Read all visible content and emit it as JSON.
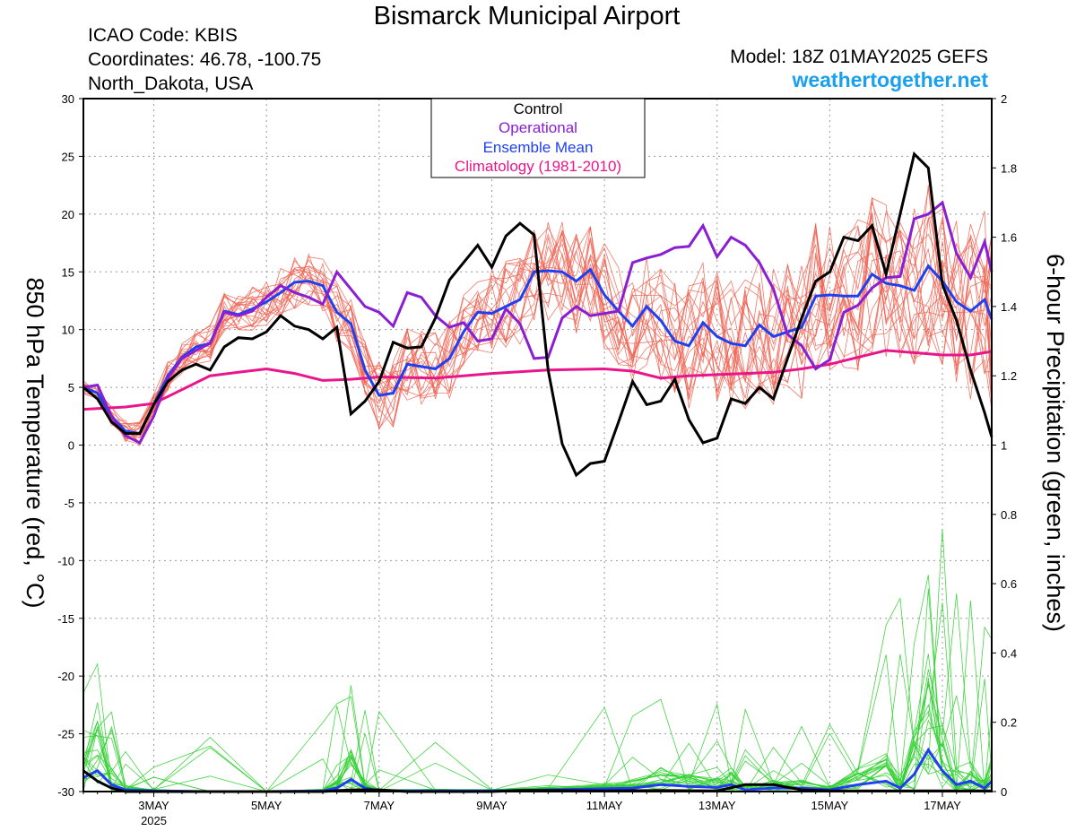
{
  "header": {
    "title": "Bismarck Municipal Airport",
    "icao": "ICAO Code: KBIS",
    "coordinates": "Coordinates: 46.78, -100.75",
    "region": "North_Dakota, USA",
    "model": "Model: 18Z 01MAY2025 GEFS",
    "website": "weathertogether.net"
  },
  "chart_data": {
    "type": "line",
    "title": "Bismarck Municipal Airport",
    "ylabel_left": "850 hPa Temperature (red, °C)",
    "ylabel_right": "6-hour Precipitation (green, inches)",
    "xlim_day": [
      1.75,
      17.875
    ],
    "ylim_left": [
      -30,
      30
    ],
    "ylim_right": [
      0,
      2
    ],
    "x_ticks": [
      {
        "day": 3,
        "label": "3MAY",
        "sublabel": "2025"
      },
      {
        "day": 5,
        "label": "5MAY"
      },
      {
        "day": 7,
        "label": "7MAY"
      },
      {
        "day": 9,
        "label": "9MAY"
      },
      {
        "day": 11,
        "label": "11MAY"
      },
      {
        "day": 13,
        "label": "13MAY"
      },
      {
        "day": 15,
        "label": "15MAY"
      },
      {
        "day": 17,
        "label": "17MAY"
      }
    ],
    "yticks_left": [
      "30",
      "25",
      "20",
      "15",
      "10",
      "5",
      "0",
      "-5",
      "-10",
      "-15",
      "-20",
      "-25",
      "-30"
    ],
    "yticks_right": [
      "2",
      "1.8",
      "1.6",
      "1.4",
      "1.2",
      "1",
      "0.8",
      "0.6",
      "0.4",
      "0.2",
      "0"
    ],
    "grid": true,
    "legend": {
      "placement": "top-center",
      "entries": [
        {
          "label": "Control",
          "color": "#000000"
        },
        {
          "label": "Operational",
          "color": "#8a1ed2"
        },
        {
          "label": "Ensemble Mean",
          "color": "#2040f0"
        },
        {
          "label": "Climatology (1981-2010)",
          "color": "#e8168a"
        }
      ]
    },
    "colors": {
      "control": "#000000",
      "operational": "#8a1ed2",
      "ensemble_mean": "#2040f0",
      "climatology": "#e8168a",
      "members_temp": "#f06050",
      "members_precip": "#30d030"
    },
    "series": {
      "control_temp": [
        [
          1.75,
          5
        ],
        [
          2,
          4
        ],
        [
          2.25,
          2
        ],
        [
          2.5,
          1
        ],
        [
          2.75,
          1
        ],
        [
          3,
          3.5
        ],
        [
          3.25,
          5.5
        ],
        [
          3.5,
          6.5
        ],
        [
          3.75,
          7
        ],
        [
          4,
          6.5
        ],
        [
          4.25,
          8.5
        ],
        [
          4.5,
          9.3
        ],
        [
          4.75,
          9.2
        ],
        [
          5,
          9.8
        ],
        [
          5.25,
          11.2
        ],
        [
          5.5,
          10.3
        ],
        [
          5.75,
          10
        ],
        [
          6,
          9.2
        ],
        [
          6.25,
          10.2
        ],
        [
          6.5,
          2.7
        ],
        [
          6.75,
          3.8
        ],
        [
          7,
          5.5
        ],
        [
          7.25,
          8.9
        ],
        [
          7.5,
          8.4
        ],
        [
          7.75,
          8.5
        ],
        [
          8,
          11
        ],
        [
          8.25,
          14.3
        ],
        [
          8.5,
          15.8
        ],
        [
          8.75,
          17.3
        ],
        [
          9,
          15.4
        ],
        [
          9.25,
          18.1
        ],
        [
          9.5,
          19.2
        ],
        [
          9.75,
          18.2
        ],
        [
          10,
          6.5
        ],
        [
          10.25,
          0.1
        ],
        [
          10.5,
          -2.6
        ],
        [
          10.75,
          -1.6
        ],
        [
          11,
          -1.4
        ],
        [
          11.25,
          2
        ],
        [
          11.5,
          5.5
        ],
        [
          11.75,
          3.5
        ],
        [
          12,
          3.8
        ],
        [
          12.25,
          5.7
        ],
        [
          12.5,
          2.2
        ],
        [
          12.75,
          0.2
        ],
        [
          13,
          0.6
        ],
        [
          13.25,
          4
        ],
        [
          13.5,
          3.6
        ],
        [
          13.75,
          5
        ],
        [
          14,
          4
        ],
        [
          14.25,
          7.5
        ],
        [
          14.5,
          11
        ],
        [
          14.75,
          14.2
        ],
        [
          15,
          15
        ],
        [
          15.25,
          18
        ],
        [
          15.5,
          17.7
        ],
        [
          15.75,
          19
        ],
        [
          16,
          14.8
        ],
        [
          16.25,
          20
        ],
        [
          16.5,
          25.2
        ],
        [
          16.75,
          24
        ],
        [
          17,
          13.9
        ],
        [
          17.25,
          10.8
        ],
        [
          17.5,
          6.5
        ],
        [
          17.75,
          2.8
        ],
        [
          17.875,
          0.7
        ]
      ],
      "operational_temp": [
        [
          1.75,
          5
        ],
        [
          2,
          5.2
        ],
        [
          2.25,
          2.5
        ],
        [
          2.5,
          0.8
        ],
        [
          2.75,
          0.2
        ],
        [
          3,
          2.5
        ],
        [
          3.25,
          5.8
        ],
        [
          3.5,
          7.5
        ],
        [
          3.75,
          8.2
        ],
        [
          4,
          8.8
        ],
        [
          4.25,
          11.5
        ],
        [
          4.5,
          11.2
        ],
        [
          4.75,
          11.6
        ],
        [
          5,
          12.8
        ],
        [
          5.25,
          13.8
        ],
        [
          5.5,
          13.2
        ],
        [
          5.75,
          12.8
        ],
        [
          6,
          12.2
        ],
        [
          6.25,
          15
        ],
        [
          6.5,
          13.5
        ],
        [
          6.75,
          12
        ],
        [
          7,
          11.5
        ],
        [
          7.25,
          10.3
        ],
        [
          7.5,
          13.2
        ],
        [
          7.75,
          12.8
        ],
        [
          8,
          11.2
        ],
        [
          8.25,
          10.2
        ],
        [
          8.5,
          10.6
        ],
        [
          8.75,
          9
        ],
        [
          9,
          9.2
        ],
        [
          9.25,
          11.8
        ],
        [
          9.5,
          10.5
        ],
        [
          9.75,
          7.5
        ],
        [
          10,
          7.6
        ],
        [
          10.25,
          11
        ],
        [
          10.5,
          12
        ],
        [
          10.75,
          11.2
        ],
        [
          11,
          11.4
        ],
        [
          11.25,
          11.6
        ],
        [
          11.5,
          15.8
        ],
        [
          11.75,
          16.2
        ],
        [
          12,
          16.5
        ],
        [
          12.25,
          17.1
        ],
        [
          12.5,
          17.2
        ],
        [
          12.75,
          19
        ],
        [
          13,
          16.3
        ],
        [
          13.25,
          18
        ],
        [
          13.5,
          17.3
        ],
        [
          13.75,
          15.8
        ],
        [
          14,
          13.5
        ],
        [
          14.25,
          9.6
        ],
        [
          14.5,
          8.6
        ],
        [
          14.75,
          6.6
        ],
        [
          15,
          7.4
        ],
        [
          15.25,
          11.5
        ],
        [
          15.5,
          12.1
        ],
        [
          15.75,
          13.6
        ],
        [
          16,
          14.5
        ],
        [
          16.25,
          14.6
        ],
        [
          16.5,
          19.6
        ],
        [
          16.75,
          20
        ],
        [
          17,
          21
        ],
        [
          17.25,
          16.6
        ],
        [
          17.5,
          14.5
        ],
        [
          17.75,
          17.6
        ],
        [
          17.875,
          15
        ]
      ],
      "ensemble_mean_temp": [
        [
          1.75,
          5
        ],
        [
          2,
          4.5
        ],
        [
          2.25,
          2.5
        ],
        [
          2.5,
          1.2
        ],
        [
          2.75,
          1
        ],
        [
          3,
          3.5
        ],
        [
          3.25,
          6
        ],
        [
          3.5,
          7.6
        ],
        [
          3.75,
          8.5
        ],
        [
          4,
          8.8
        ],
        [
          4.25,
          11.6
        ],
        [
          4.5,
          11.3
        ],
        [
          4.75,
          11.8
        ],
        [
          5,
          12.4
        ],
        [
          5.25,
          13.2
        ],
        [
          5.5,
          14.1
        ],
        [
          5.75,
          14.2
        ],
        [
          6,
          13.8
        ],
        [
          6.25,
          11.5
        ],
        [
          6.5,
          10.5
        ],
        [
          6.75,
          6.5
        ],
        [
          7,
          4.3
        ],
        [
          7.25,
          4.5
        ],
        [
          7.5,
          7
        ],
        [
          7.75,
          6.8
        ],
        [
          8,
          6.6
        ],
        [
          8.25,
          7.5
        ],
        [
          8.5,
          9.8
        ],
        [
          8.75,
          11.5
        ],
        [
          9,
          11.4
        ],
        [
          9.25,
          12
        ],
        [
          9.5,
          12.6
        ],
        [
          9.75,
          15
        ],
        [
          10,
          15.1
        ],
        [
          10.25,
          15
        ],
        [
          10.5,
          14.2
        ],
        [
          10.75,
          15.2
        ],
        [
          11,
          13
        ],
        [
          11.25,
          11.6
        ],
        [
          11.5,
          10.3
        ],
        [
          11.75,
          12
        ],
        [
          12,
          10.8
        ],
        [
          12.25,
          9
        ],
        [
          12.5,
          8.6
        ],
        [
          12.75,
          10.6
        ],
        [
          13,
          9.4
        ],
        [
          13.25,
          8.8
        ],
        [
          13.5,
          8.6
        ],
        [
          13.75,
          10.4
        ],
        [
          14,
          9.4
        ],
        [
          14.25,
          9.8
        ],
        [
          14.5,
          10.2
        ],
        [
          14.75,
          12.9
        ],
        [
          15,
          13
        ],
        [
          15.25,
          12.9
        ],
        [
          15.5,
          12.9
        ],
        [
          15.75,
          14.8
        ],
        [
          16,
          14
        ],
        [
          16.25,
          13.8
        ],
        [
          16.5,
          13.4
        ],
        [
          16.75,
          15.5
        ],
        [
          17,
          14.2
        ],
        [
          17.25,
          12.4
        ],
        [
          17.5,
          11.6
        ],
        [
          17.75,
          12.6
        ],
        [
          17.875,
          10.9
        ]
      ],
      "climatology_temp": [
        [
          1.75,
          3.1
        ],
        [
          2.5,
          3.3
        ],
        [
          3,
          3.6
        ],
        [
          3.5,
          4.8
        ],
        [
          4,
          6
        ],
        [
          4.5,
          6.3
        ],
        [
          5,
          6.6
        ],
        [
          5.5,
          6.2
        ],
        [
          6,
          5.6
        ],
        [
          6.5,
          5.7
        ],
        [
          7,
          5.9
        ],
        [
          8,
          5.8
        ],
        [
          8.5,
          6
        ],
        [
          9,
          6.2
        ],
        [
          10,
          6.5
        ],
        [
          11,
          6.6
        ],
        [
          11.5,
          6.4
        ],
        [
          12,
          5.8
        ],
        [
          12.5,
          6
        ],
        [
          13,
          6.1
        ],
        [
          13.5,
          6.2
        ],
        [
          14,
          6.3
        ],
        [
          14.5,
          6.6
        ],
        [
          15,
          7
        ],
        [
          15.5,
          7.6
        ],
        [
          16,
          8.2
        ],
        [
          16.5,
          8
        ],
        [
          17,
          7.8
        ],
        [
          17.5,
          7.8
        ],
        [
          17.875,
          8.1
        ]
      ],
      "control_precip": [
        [
          1.75,
          0.06
        ],
        [
          2,
          0.03
        ],
        [
          2.25,
          0.01
        ],
        [
          2.5,
          0
        ],
        [
          3,
          0
        ],
        [
          4,
          0
        ],
        [
          5,
          0
        ],
        [
          6,
          0
        ],
        [
          6.5,
          0.005
        ],
        [
          7,
          0.005
        ],
        [
          7.5,
          0
        ],
        [
          8,
          0
        ],
        [
          9,
          0
        ],
        [
          9.5,
          0.003
        ],
        [
          10,
          0.003
        ],
        [
          11,
          0.002
        ],
        [
          12,
          0.003
        ],
        [
          13,
          0.002
        ],
        [
          13.5,
          0.02
        ],
        [
          14,
          0.02
        ],
        [
          14.5,
          0.005
        ],
        [
          15,
          0.002
        ],
        [
          16,
          0.002
        ],
        [
          17,
          0.002
        ],
        [
          17.875,
          0.002
        ]
      ],
      "ensemble_mean_precip": [
        [
          1.75,
          0.04
        ],
        [
          2,
          0.06
        ],
        [
          2.25,
          0.02
        ],
        [
          2.5,
          0.005
        ],
        [
          3,
          0.002
        ],
        [
          4,
          0
        ],
        [
          5,
          0
        ],
        [
          6,
          0.002
        ],
        [
          6.25,
          0.01
        ],
        [
          6.5,
          0.035
        ],
        [
          6.75,
          0.01
        ],
        [
          7,
          0.002
        ],
        [
          8,
          0.002
        ],
        [
          9,
          0.002
        ],
        [
          10,
          0.005
        ],
        [
          11,
          0.008
        ],
        [
          11.5,
          0.01
        ],
        [
          12,
          0.02
        ],
        [
          12.5,
          0.015
        ],
        [
          13,
          0.012
        ],
        [
          13.25,
          0.02
        ],
        [
          13.5,
          0.005
        ],
        [
          14,
          0.01
        ],
        [
          14.5,
          0.01
        ],
        [
          15,
          0.005
        ],
        [
          15.5,
          0.02
        ],
        [
          16,
          0.03
        ],
        [
          16.25,
          0.01
        ],
        [
          16.5,
          0.05
        ],
        [
          16.75,
          0.12
        ],
        [
          17,
          0.06
        ],
        [
          17.25,
          0.02
        ],
        [
          17.5,
          0.03
        ],
        [
          17.75,
          0.01
        ],
        [
          17.875,
          0.03
        ]
      ]
    }
  }
}
